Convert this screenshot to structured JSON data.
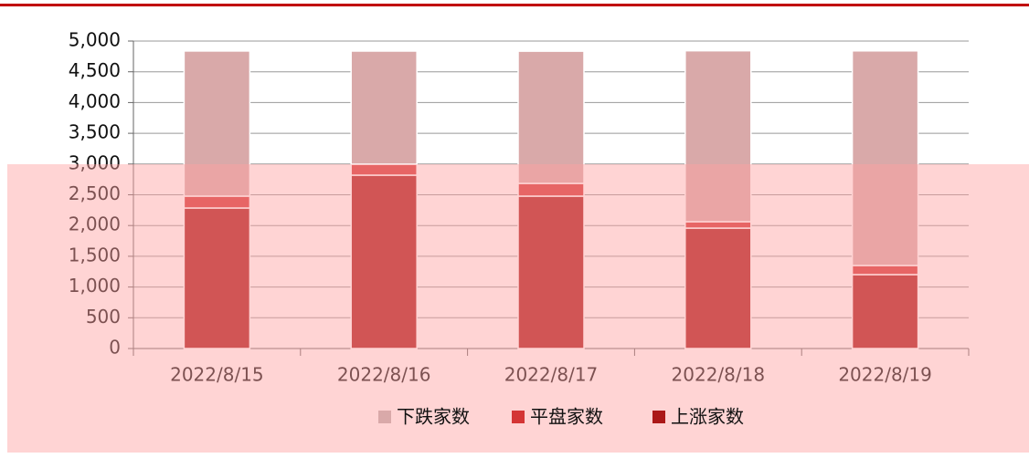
{
  "chart_data": {
    "type": "stacked_bar",
    "categories": [
      "2022/8/15",
      "2022/8/16",
      "2022/8/17",
      "2022/8/18",
      "2022/8/19"
    ],
    "series": [
      {
        "name": "上涨家数",
        "color": "#ab1818",
        "values": [
          2285,
          2819,
          2478,
          1958,
          1202
        ]
      },
      {
        "name": "平盘家数",
        "color": "#d43535",
        "values": [
          193,
          178,
          207,
          104,
          148
        ]
      },
      {
        "name": "下跌家数",
        "color": "#d9a9a9",
        "values": [
          2360,
          1840,
          2150,
          2780,
          3490
        ]
      }
    ],
    "legend_order": [
      2,
      1,
      0
    ],
    "ylim": [
      0,
      5000
    ],
    "yticks": [
      0,
      500,
      {
        "value": 1000,
        "label": "1,000"
      },
      {
        "value": 1500,
        "label": "1,500"
      },
      {
        "value": 2000,
        "label": "2,000"
      },
      {
        "value": 2500,
        "label": "2,500"
      },
      {
        "value": 3000,
        "label": "3,000"
      },
      {
        "value": 3500,
        "label": "3,500"
      },
      {
        "value": 4000,
        "label": "4,000"
      },
      {
        "value": 4500,
        "label": "4,500"
      },
      {
        "value": 5000,
        "label": "5,000"
      }
    ],
    "grid": true
  }
}
